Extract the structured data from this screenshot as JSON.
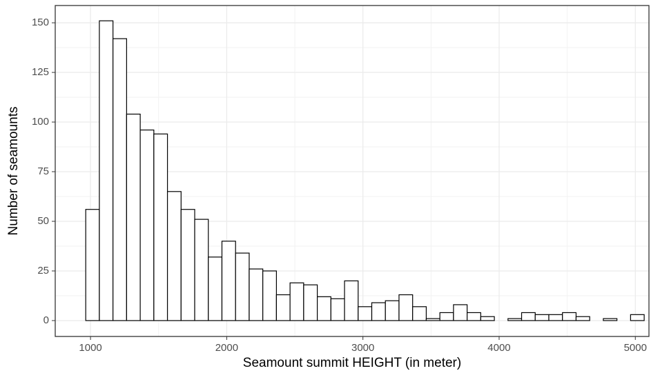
{
  "chart_data": {
    "type": "histogram",
    "x_label": "Seamount summit HEIGHT (in meter)",
    "y_label": "Number of seamounts",
    "bins": [
      965,
      1065,
      1165,
      1265,
      1365,
      1465,
      1565,
      1665,
      1765,
      1865,
      1965,
      2065,
      2165,
      2265,
      2365,
      2465,
      2565,
      2665,
      2765,
      2865,
      2965,
      3065,
      3165,
      3265,
      3365,
      3465,
      3565,
      3665,
      3765,
      3865,
      3965,
      4065,
      4165,
      4265,
      4365,
      4465,
      4565,
      4665,
      4765,
      4865,
      4965,
      5065
    ],
    "values": [
      56,
      151,
      142,
      104,
      96,
      94,
      65,
      56,
      51,
      32,
      40,
      34,
      26,
      25,
      13,
      19,
      18,
      12,
      11,
      20,
      7,
      9,
      10,
      13,
      7,
      1,
      4,
      8,
      4,
      2,
      0,
      1,
      4,
      3,
      3,
      4,
      2,
      0,
      1,
      0,
      3
    ],
    "color": "#ffffff",
    "edge_color": "#000000",
    "xlim": [
      741,
      5100
    ],
    "ylim": [
      -8,
      158.7
    ],
    "xticks": [
      1000,
      2000,
      3000,
      4000,
      5000
    ],
    "yticks": [
      0,
      25,
      50,
      75,
      100,
      125,
      150
    ],
    "grid": true
  }
}
